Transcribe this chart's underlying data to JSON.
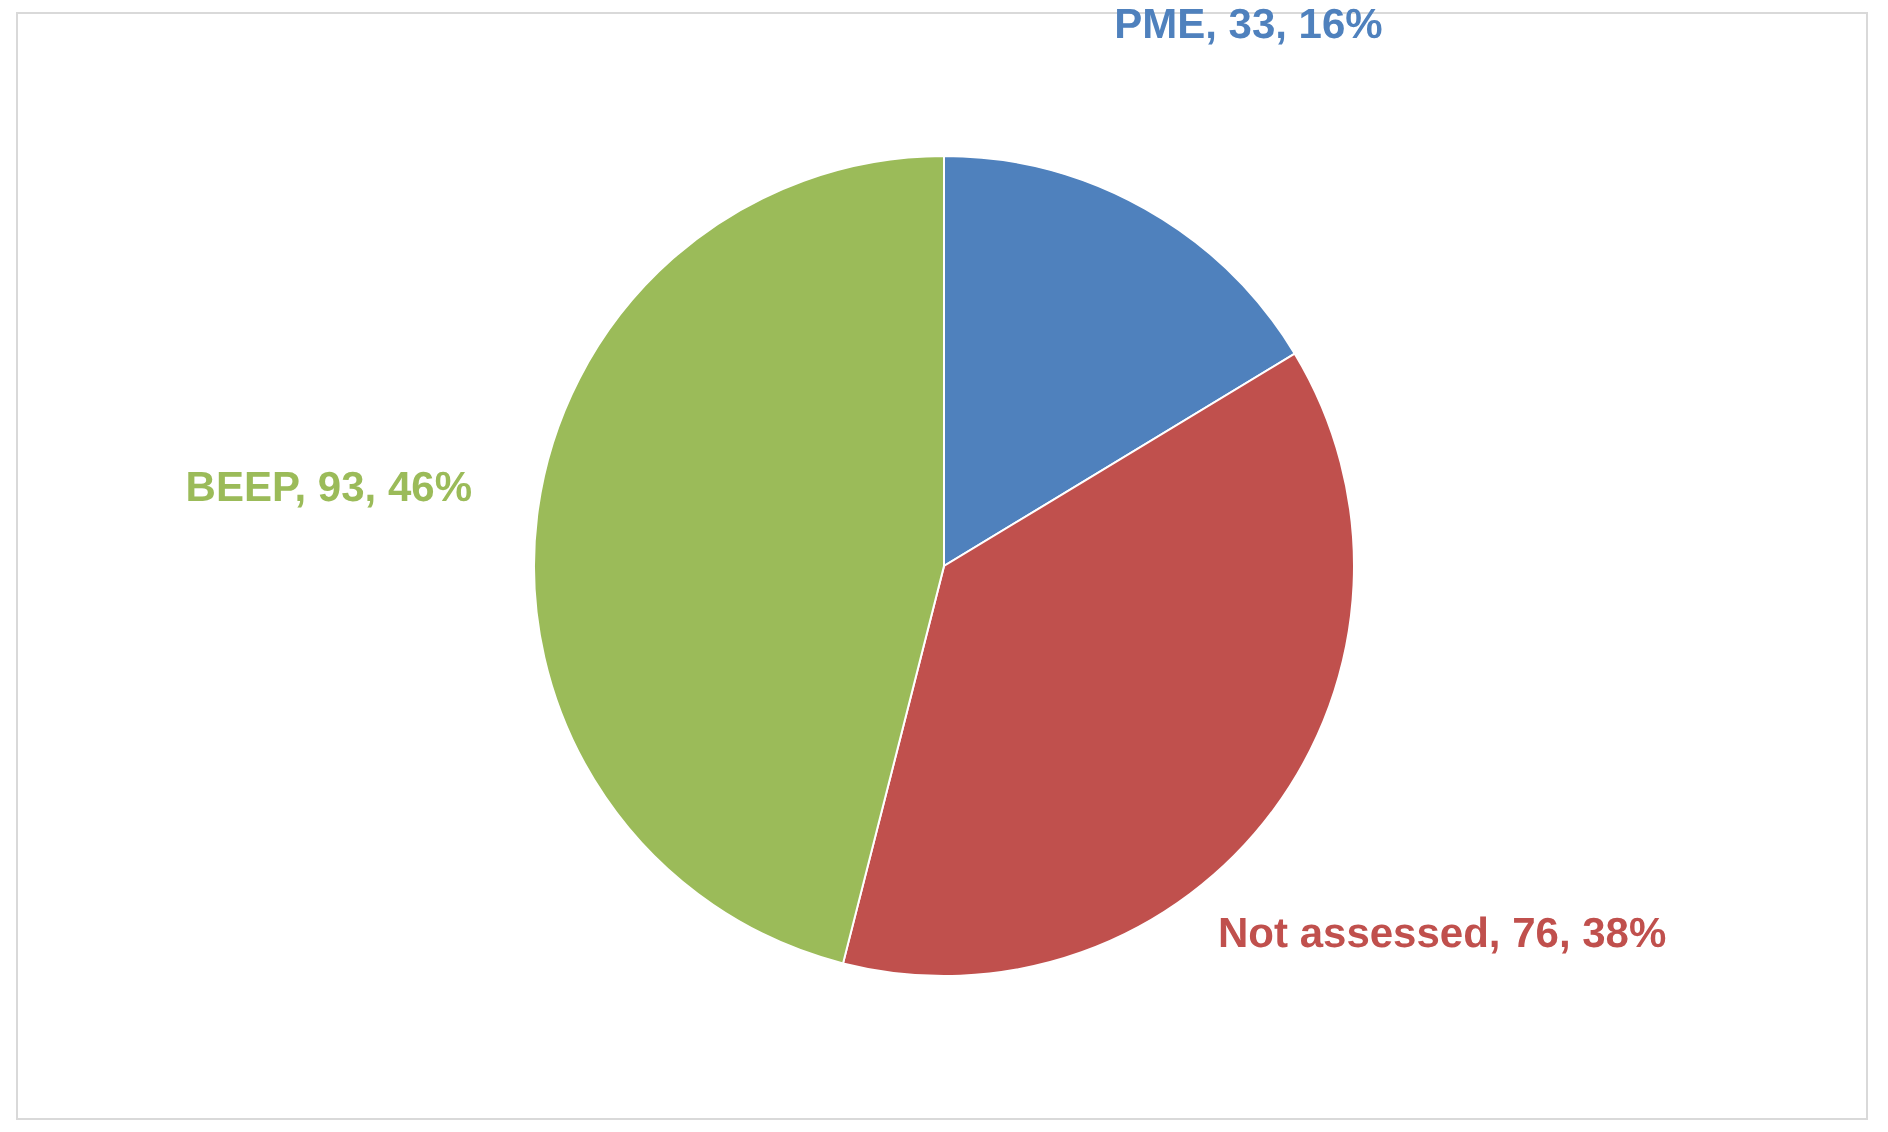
{
  "chart_data": {
    "type": "pie",
    "categories": [
      "PME",
      "Not assessed",
      "BEEP"
    ],
    "values": [
      33,
      76,
      93
    ],
    "colors": [
      "#4f81bd",
      "#c0504d",
      "#9bbb59"
    ],
    "value_labels": [
      "33, 16%",
      "76, 38%",
      "93, 46%"
    ]
  }
}
